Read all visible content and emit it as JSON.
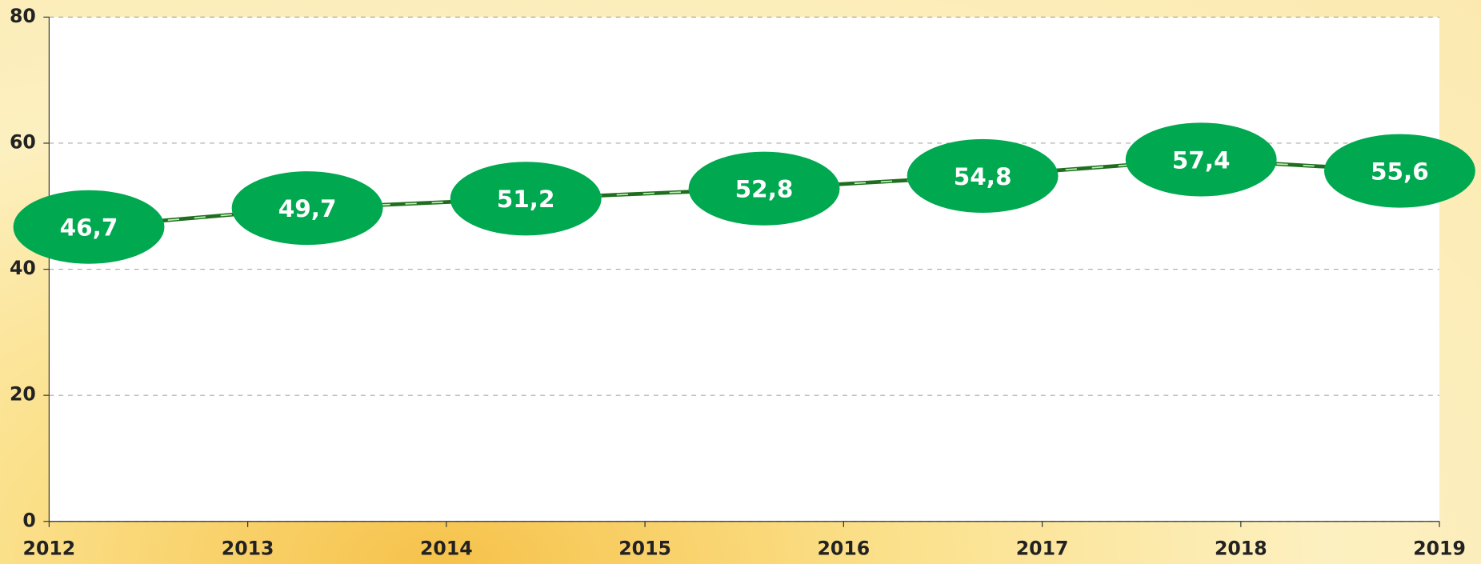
{
  "chart_data": {
    "type": "line",
    "x": [
      2012.2,
      2013.3,
      2014.4,
      2015.6,
      2016.7,
      2017.8,
      2018.8
    ],
    "series": [
      {
        "color": "#1f6e1f",
        "values": [
          46.7,
          49.7,
          51.2,
          52.8,
          54.8,
          57.4,
          55.6
        ],
        "value_labels": [
          "46,7",
          "49,7",
          "51,2",
          "52,8",
          "54,8",
          "57,4",
          "55,6"
        ]
      }
    ],
    "xlim": [
      2012,
      2019
    ],
    "xticks": [
      2012,
      2013,
      2014,
      2015,
      2016,
      2017,
      2018,
      2019
    ],
    "ylim": [
      0,
      80
    ],
    "yticks": [
      0,
      20,
      40,
      60,
      80
    ],
    "grid": true,
    "label_color": "#00a850"
  }
}
